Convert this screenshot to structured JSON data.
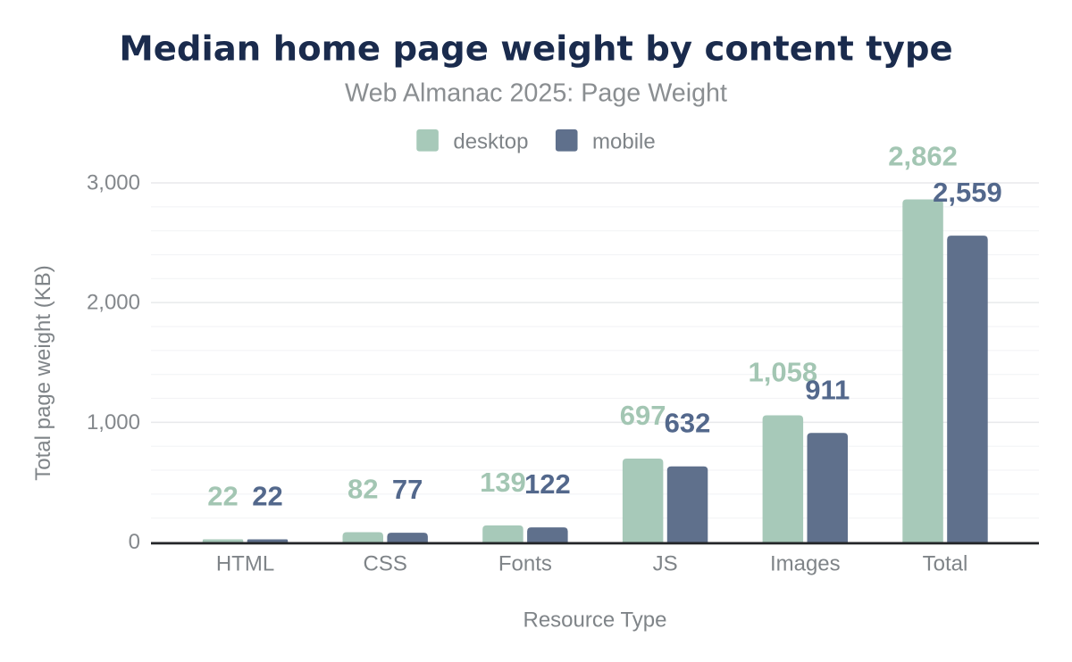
{
  "page": {
    "background": "#ffffff"
  },
  "chart_data": {
    "type": "bar",
    "title": "Median home page weight by content type",
    "subtitle": "Web Almanac 2025: Page Weight",
    "xlabel": "Resource Type",
    "ylabel": "Total page weight (KB)",
    "categories": [
      "HTML",
      "CSS",
      "Fonts",
      "JS",
      "Images",
      "Total"
    ],
    "series": [
      {
        "name": "desktop",
        "values": [
          22,
          82,
          139,
          697,
          1058,
          2862
        ],
        "value_labels": [
          "22",
          "82",
          "139",
          "697",
          "1,058",
          "2,862"
        ],
        "bar_color": "#a7c9b9",
        "label_color": "#a3c6b3"
      },
      {
        "name": "mobile",
        "values": [
          22,
          77,
          122,
          632,
          911,
          2559
        ],
        "value_labels": [
          "22",
          "77",
          "122",
          "632",
          "911",
          "2,559"
        ],
        "bar_color": "#5f708c",
        "label_color": "#53688c"
      }
    ],
    "y_axis": {
      "min": 0,
      "max": 3000,
      "major_step": 1000,
      "minor_step": 200,
      "ticks": [
        0,
        1000,
        2000,
        3000
      ],
      "tick_labels": [
        "0",
        "1,000",
        "2,000",
        "3,000"
      ]
    },
    "legend_position": "top",
    "grid": true
  },
  "colors": {
    "title": "#1a2b4d",
    "subtitle": "#8a8e91",
    "axis_text": "#7f8488",
    "tick_text": "#84888c",
    "grid_major": "#e8e9eb",
    "grid_minor": "#f3f4f6",
    "axis_line": "#242629",
    "background": "#ffffff"
  }
}
